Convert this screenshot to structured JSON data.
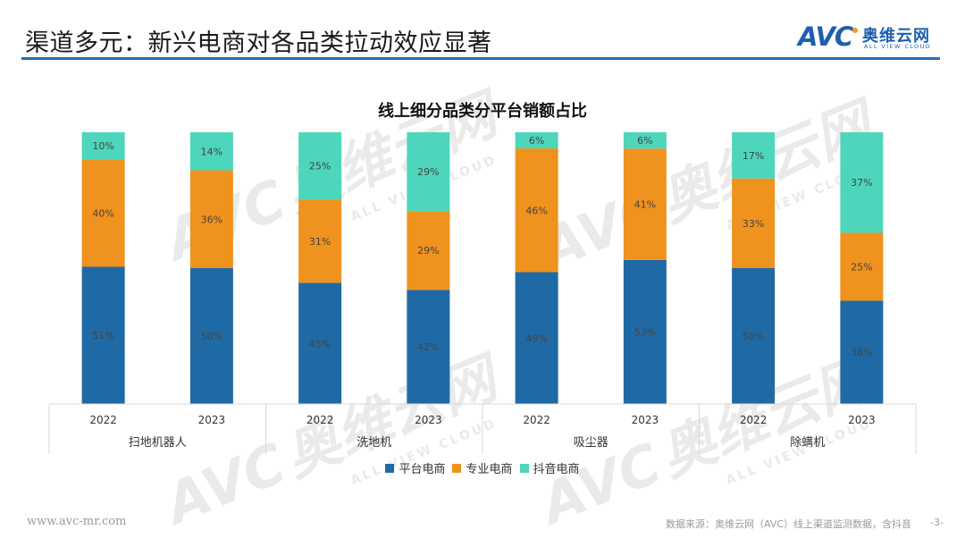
{
  "header": {
    "title": "渠道多元：新兴电商对各品类拉动效应显著",
    "logo": {
      "abbr": "AVC",
      "cn": "奥维云网",
      "en": "ALL VIEW CLOUD"
    }
  },
  "watermark": {
    "abbr": "AVC",
    "cn": "奥维云网",
    "en": "ALL VIEW CLOUD"
  },
  "colors": {
    "accent": "#1f6fb7",
    "platform": "#1f6aa5",
    "professional": "#f0921e",
    "douyin": "#4dd6bc"
  },
  "chart_data": {
    "type": "bar",
    "stacked": true,
    "percent": true,
    "title": "线上细分品类分平台销额占比",
    "xlabel": "",
    "ylabel": "",
    "ylim": [
      0,
      100
    ],
    "grid": false,
    "legend_position": "bottom",
    "groups": [
      "扫地机器人",
      "洗地机",
      "吸尘器",
      "除螨机"
    ],
    "categories": [
      "2022",
      "2023",
      "2022",
      "2023",
      "2022",
      "2023",
      "2022",
      "2023"
    ],
    "series": [
      {
        "name": "平台电商",
        "color": "#1f6aa5",
        "values": [
          51,
          50,
          45,
          42,
          49,
          53,
          50,
          38
        ]
      },
      {
        "name": "专业电商",
        "color": "#f0921e",
        "values": [
          40,
          36,
          31,
          29,
          46,
          41,
          33,
          25
        ]
      },
      {
        "name": "抖音电商",
        "color": "#4dd6bc",
        "values": [
          10,
          14,
          25,
          29,
          6,
          6,
          17,
          37
        ]
      }
    ]
  },
  "footer": {
    "url": "www.avc-mr.com",
    "source": "数据来源：奥维云网（AVC）线上渠道监测数据，含抖音",
    "page": "-3-"
  }
}
